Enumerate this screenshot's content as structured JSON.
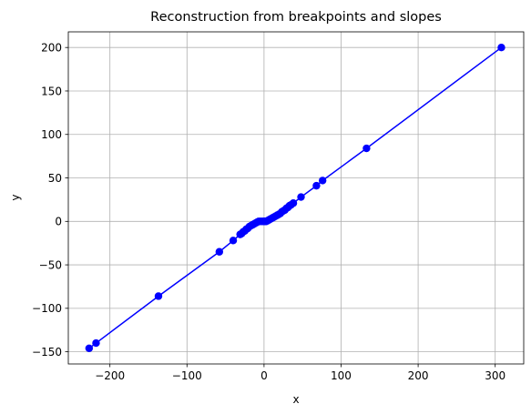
{
  "chart_data": {
    "type": "line",
    "title": "Reconstruction from breakpoints and slopes",
    "xlabel": "x",
    "ylabel": "y",
    "xlim": [
      -254,
      337
    ],
    "ylim": [
      -164,
      218
    ],
    "xticks": [
      -200,
      -100,
      0,
      100,
      200,
      300
    ],
    "xtick_labels": [
      "−200",
      "−100",
      "0",
      "100",
      "200",
      "300"
    ],
    "yticks": [
      -150,
      -100,
      -50,
      0,
      50,
      100,
      150,
      200
    ],
    "ytick_labels": [
      "−150",
      "−100",
      "−50",
      "0",
      "50",
      "100",
      "150",
      "200"
    ],
    "grid": true,
    "series": [
      {
        "color": "#0000ff",
        "marker": "circle",
        "x": [
          -227,
          -218,
          -137,
          -58,
          -40,
          -31,
          -29,
          -27,
          -25,
          -23,
          -21,
          -19,
          -17,
          -15,
          -13,
          -11,
          -9,
          -7,
          -5,
          -3,
          -1,
          0,
          1,
          2,
          3,
          5,
          7,
          9,
          11,
          13,
          15,
          17,
          19,
          21,
          23,
          25,
          27,
          29,
          31,
          33,
          35,
          38,
          48,
          68,
          76,
          133,
          308
        ],
        "y": [
          -146,
          -140,
          -86,
          -35,
          -22,
          -15,
          -14,
          -12,
          -11,
          -9,
          -8,
          -6,
          -5,
          -4,
          -3,
          -2,
          -1,
          0,
          0,
          0,
          0,
          0,
          0,
          0,
          0,
          1,
          2,
          3,
          4,
          5,
          6,
          7,
          8,
          9,
          11,
          12,
          13,
          15,
          16,
          18,
          19,
          21,
          28,
          41,
          47,
          84,
          200
        ]
      }
    ]
  }
}
